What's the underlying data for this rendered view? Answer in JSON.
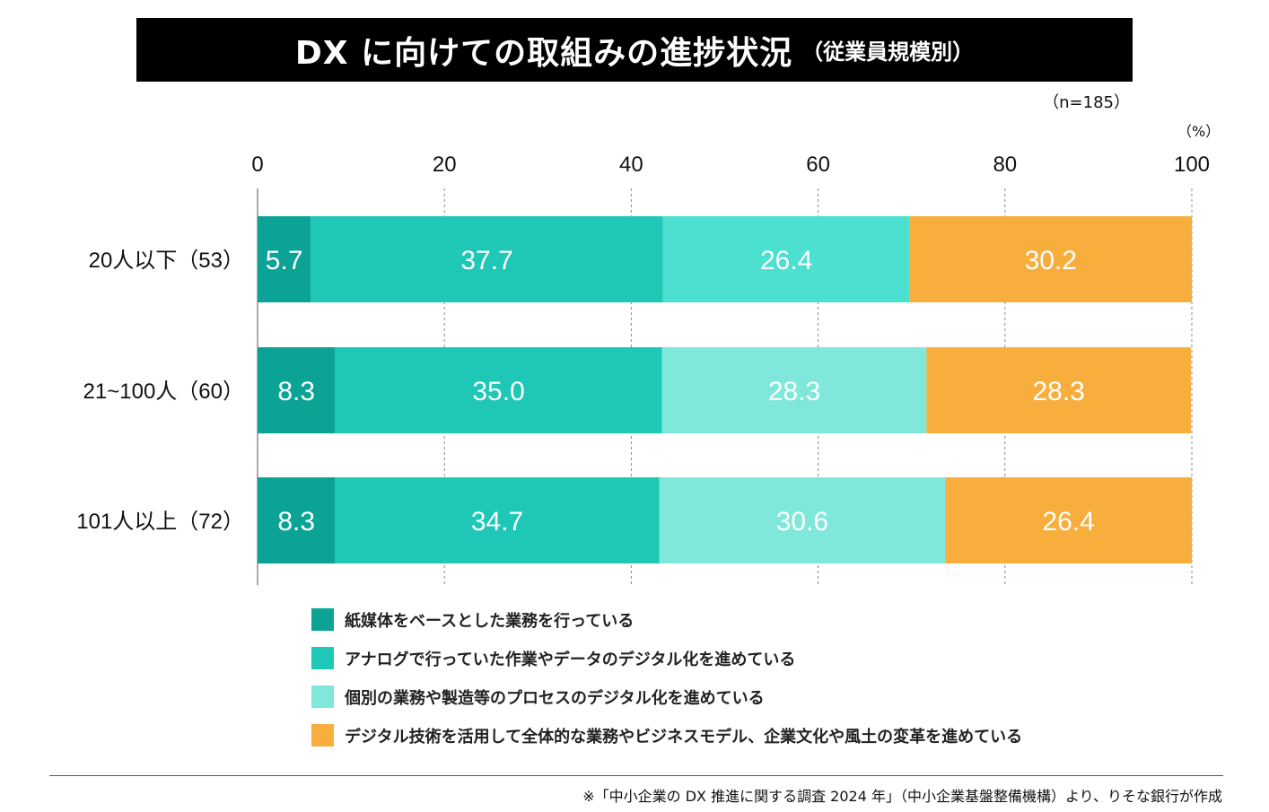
{
  "title": "DX に向けての取組みの進捗状況",
  "subtitle": "（従業員規模別）",
  "n_label": "（n=185）",
  "unit_label": "（%）",
  "footer": "※「中小企業の DX 推進に関する調査 2024 年」（中小企業基盤整備機構）より、りそな銀行が作成",
  "chart_data": {
    "type": "bar",
    "orientation": "horizontal",
    "stacked": true,
    "xlim": [
      0,
      100
    ],
    "xticks": [
      "0",
      "20",
      "40",
      "60",
      "80",
      "100"
    ],
    "grid": true,
    "legend_position": "bottom",
    "categories": [
      "20人以下（53）",
      "21~100人（60）",
      "101人以上（72）"
    ],
    "series": [
      {
        "name": "紙媒体をベースとした業務を行っている",
        "color": "#0aa396",
        "values": [
          5.7,
          8.3,
          8.3
        ]
      },
      {
        "name": "アナログで行っていた作業やデータのデジタル化を進めている",
        "color": "#1fc7b6",
        "values": [
          37.7,
          35.0,
          34.7
        ]
      },
      {
        "name": "個別の業務や製造等のプロセスのデジタル化を進めている",
        "color": "#80e8da",
        "colors_by_row": [
          "#4be0cf",
          "#80e8da",
          "#80e8da"
        ],
        "values": [
          26.4,
          28.3,
          30.6
        ]
      },
      {
        "name": "デジタル技術を活用して全体的な業務やビジネスモデル、企業文化や風土の変革を進めている",
        "color": "#f7ae3d",
        "values": [
          30.2,
          28.3,
          26.4
        ]
      }
    ]
  }
}
